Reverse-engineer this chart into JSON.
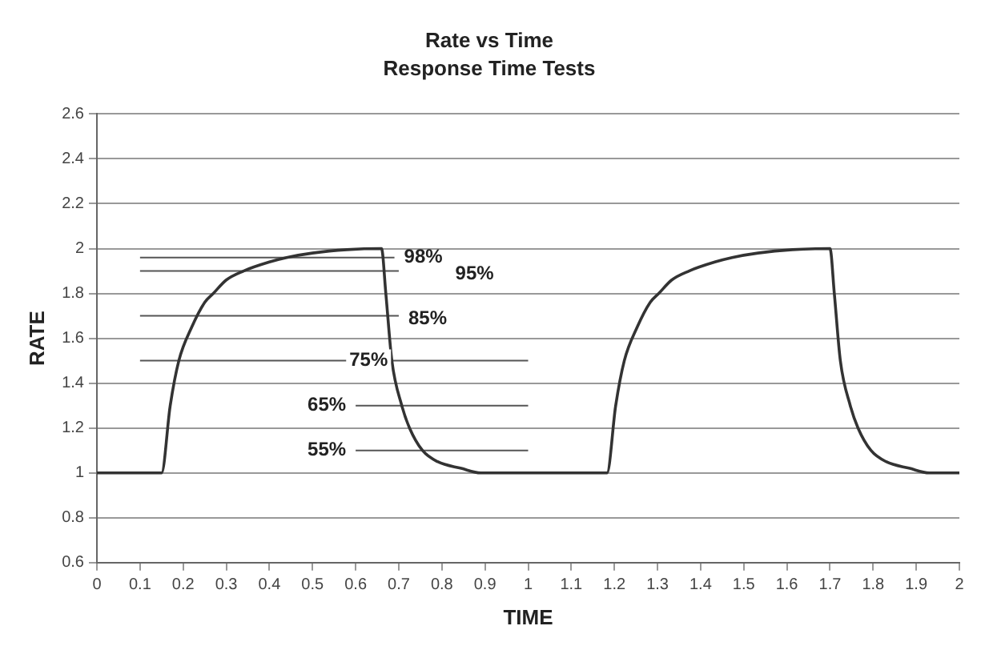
{
  "chart_data": {
    "type": "line",
    "title": "Rate vs Time",
    "subtitle": "Response Time Tests",
    "xlabel": "TIME",
    "ylabel": "RATE",
    "xlim": [
      0,
      2
    ],
    "xticks": [
      0,
      0.1,
      0.2,
      0.3,
      0.4,
      0.5,
      0.6,
      0.7,
      0.8,
      0.9,
      1,
      1.1,
      1.2,
      1.3,
      1.4,
      1.5,
      1.6,
      1.7,
      1.8,
      1.9,
      2
    ],
    "ylim": [
      0.6,
      2.6
    ],
    "yticks": [
      0.6,
      0.8,
      1,
      1.2,
      1.4,
      1.6,
      1.8,
      2,
      2.2,
      2.4,
      2.6
    ],
    "grid": "y",
    "legend": false,
    "marker": "none",
    "series": [
      {
        "color": "#333333",
        "x": [
          0,
          0.15,
          0.17,
          0.19,
          0.22,
          0.25,
          0.27,
          0.3,
          0.34,
          0.4,
          0.44,
          0.5,
          0.58,
          0.66,
          0.67,
          0.684,
          0.707,
          0.725,
          0.755,
          0.79,
          0.845,
          0.89,
          1.183,
          1.203,
          1.223,
          1.253,
          1.283,
          1.303,
          1.333,
          1.373,
          1.433,
          1.473,
          1.533,
          1.613,
          1.7,
          1.71,
          1.724,
          1.747,
          1.765,
          1.795,
          1.83,
          1.885,
          1.93,
          2
        ],
        "values": [
          1,
          1,
          1.3,
          1.5,
          1.65,
          1.76,
          1.8,
          1.86,
          1.9,
          1.94,
          1.96,
          1.98,
          1.995,
          2,
          1.8,
          1.5,
          1.3,
          1.2,
          1.1,
          1.05,
          1.02,
          1,
          1,
          1.3,
          1.5,
          1.65,
          1.76,
          1.8,
          1.86,
          1.9,
          1.94,
          1.96,
          1.98,
          1.995,
          2,
          1.8,
          1.5,
          1.3,
          1.2,
          1.1,
          1.05,
          1.02,
          1,
          1
        ]
      },
      {
        "color": "#555555",
        "x": [
          0.1,
          0.69
        ],
        "values": [
          1.96,
          1.96
        ]
      },
      {
        "color": "#555555",
        "x": [
          0.1,
          0.7
        ],
        "values": [
          1.9,
          1.9
        ]
      },
      {
        "color": "#555555",
        "x": [
          0.1,
          0.7
        ],
        "values": [
          1.7,
          1.7
        ]
      },
      {
        "color": "#555555",
        "x": [
          0.1,
          1
        ],
        "values": [
          1.5,
          1.5
        ]
      },
      {
        "color": "#555555",
        "x": [
          0.6,
          1
        ],
        "values": [
          1.3,
          1.3
        ]
      },
      {
        "color": "#555555",
        "x": [
          0.6,
          1
        ],
        "values": [
          1.1,
          1.1
        ]
      }
    ],
    "annotations": [
      {
        "text": "98%",
        "x": 0.69,
        "y": 1.96
      },
      {
        "text": "95%",
        "x": 0.7,
        "y": 1.9
      },
      {
        "text": "85%",
        "x": 0.7,
        "y": 1.7
      },
      {
        "text": "75%",
        "x": 0.63,
        "y": 1.5
      },
      {
        "text": "65%",
        "x": 0.6,
        "y": 1.3
      },
      {
        "text": "55%",
        "x": 0.6,
        "y": 1.1
      }
    ]
  }
}
